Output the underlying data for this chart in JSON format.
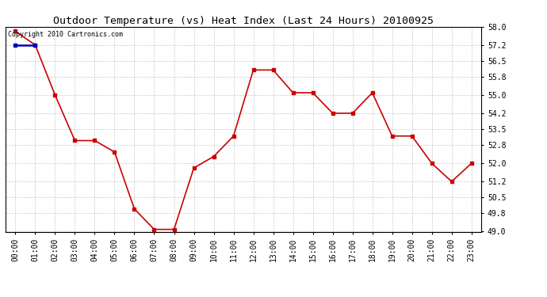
{
  "title": "Outdoor Temperature (vs) Heat Index (Last 24 Hours) 20100925",
  "copyright_text": "Copyright 2010 Cartronics.com",
  "x_labels": [
    "00:00",
    "01:00",
    "02:00",
    "03:00",
    "04:00",
    "05:00",
    "06:00",
    "07:00",
    "08:00",
    "09:00",
    "10:00",
    "11:00",
    "12:00",
    "13:00",
    "14:00",
    "15:00",
    "16:00",
    "17:00",
    "18:00",
    "19:00",
    "20:00",
    "21:00",
    "22:00",
    "23:00"
  ],
  "temp_values": [
    57.8,
    57.2,
    55.0,
    53.0,
    53.0,
    52.5,
    50.0,
    49.1,
    49.1,
    51.8,
    52.3,
    53.2,
    56.1,
    56.1,
    55.1,
    55.1,
    54.2,
    54.2,
    55.1,
    53.2,
    53.2,
    52.0,
    51.2,
    52.0
  ],
  "heat_values": [
    57.2,
    57.2
  ],
  "ylim_min": 49.0,
  "ylim_max": 58.0,
  "yticks": [
    49.0,
    49.8,
    50.5,
    51.2,
    52.0,
    52.8,
    53.5,
    54.2,
    55.0,
    55.8,
    56.5,
    57.2,
    58.0
  ],
  "line_color": "#cc0000",
  "heat_line_color": "#0000bb",
  "marker": "s",
  "marker_size": 2.5,
  "bg_color": "#ffffff",
  "grid_color": "#bbbbbb",
  "title_fontsize": 9.5,
  "tick_fontsize": 7,
  "copyright_fontsize": 6
}
